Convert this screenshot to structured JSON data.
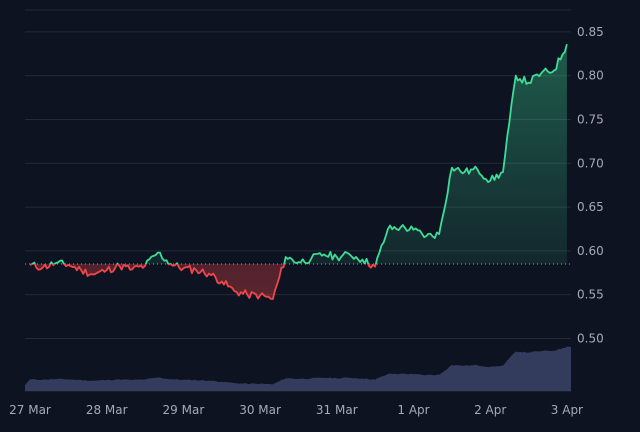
{
  "chart_data": {
    "type": "line",
    "title": "",
    "xlabel": "",
    "ylabel": "",
    "x_tick_labels": [
      "27 Mar",
      "28 Mar",
      "29 Mar",
      "30 Mar",
      "31 Mar",
      "1 Apr",
      "2 Apr",
      "3 Apr"
    ],
    "y_tick_labels": [
      "0.50",
      "0.55",
      "0.60",
      "0.65",
      "0.70",
      "0.75",
      "0.80",
      "0.85"
    ],
    "ylim": [
      0.44,
      0.875
    ],
    "baseline": 0.585,
    "grid": true,
    "colors": {
      "background": "#0e1321",
      "grid": "#232a3a",
      "tick_text": "#a4aab7",
      "above": "#3ddc97",
      "below": "#f0464a",
      "baseline": "#9aa0ab",
      "volume": "#3a4466"
    },
    "series": [
      {
        "values": [
          [
            "27 Mar",
            0.584
          ],
          [
            "27 Mar 04:00",
            0.581
          ],
          [
            "27 Mar 08:00",
            0.586
          ],
          [
            "27 Mar 12:00",
            0.584
          ],
          [
            "27 Mar 16:00",
            0.578
          ],
          [
            "27 Mar 20:00",
            0.573
          ],
          [
            "28 Mar",
            0.578
          ],
          [
            "28 Mar 04:00",
            0.583
          ],
          [
            "28 Mar 08:00",
            0.579
          ],
          [
            "28 Mar 12:00",
            0.583
          ],
          [
            "28 Mar 16:00",
            0.598
          ],
          [
            "28 Mar 20:00",
            0.585
          ],
          [
            "29 Mar",
            0.58
          ],
          [
            "29 Mar 04:00",
            0.578
          ],
          [
            "29 Mar 08:00",
            0.574
          ],
          [
            "29 Mar 12:00",
            0.565
          ],
          [
            "29 Mar 16:00",
            0.554
          ],
          [
            "29 Mar 20:00",
            0.55
          ],
          [
            "30 Mar",
            0.549
          ],
          [
            "30 Mar 04:00",
            0.545
          ],
          [
            "30 Mar 08:00",
            0.593
          ],
          [
            "30 Mar 12:00",
            0.587
          ],
          [
            "30 Mar 16:00",
            0.591
          ],
          [
            "30 Mar 20:00",
            0.596
          ],
          [
            "31 Mar",
            0.593
          ],
          [
            "31 Mar 04:00",
            0.596
          ],
          [
            "31 Mar 08:00",
            0.59
          ],
          [
            "31 Mar 12:00",
            0.582
          ],
          [
            "31 Mar 16:00",
            0.625
          ],
          [
            "31 Mar 20:00",
            0.627
          ],
          [
            "1 Apr",
            0.624
          ],
          [
            "1 Apr 04:00",
            0.617
          ],
          [
            "1 Apr 08:00",
            0.619
          ],
          [
            "1 Apr 12:00",
            0.695
          ],
          [
            "1 Apr 16:00",
            0.69
          ],
          [
            "1 Apr 20:00",
            0.693
          ],
          [
            "2 Apr",
            0.68
          ],
          [
            "2 Apr 04:00",
            0.69
          ],
          [
            "2 Apr 08:00",
            0.8
          ],
          [
            "2 Apr 12:00",
            0.792
          ],
          [
            "2 Apr 16:00",
            0.803
          ],
          [
            "2 Apr 20:00",
            0.806
          ],
          [
            "3 Apr",
            0.836
          ]
        ]
      }
    ]
  }
}
